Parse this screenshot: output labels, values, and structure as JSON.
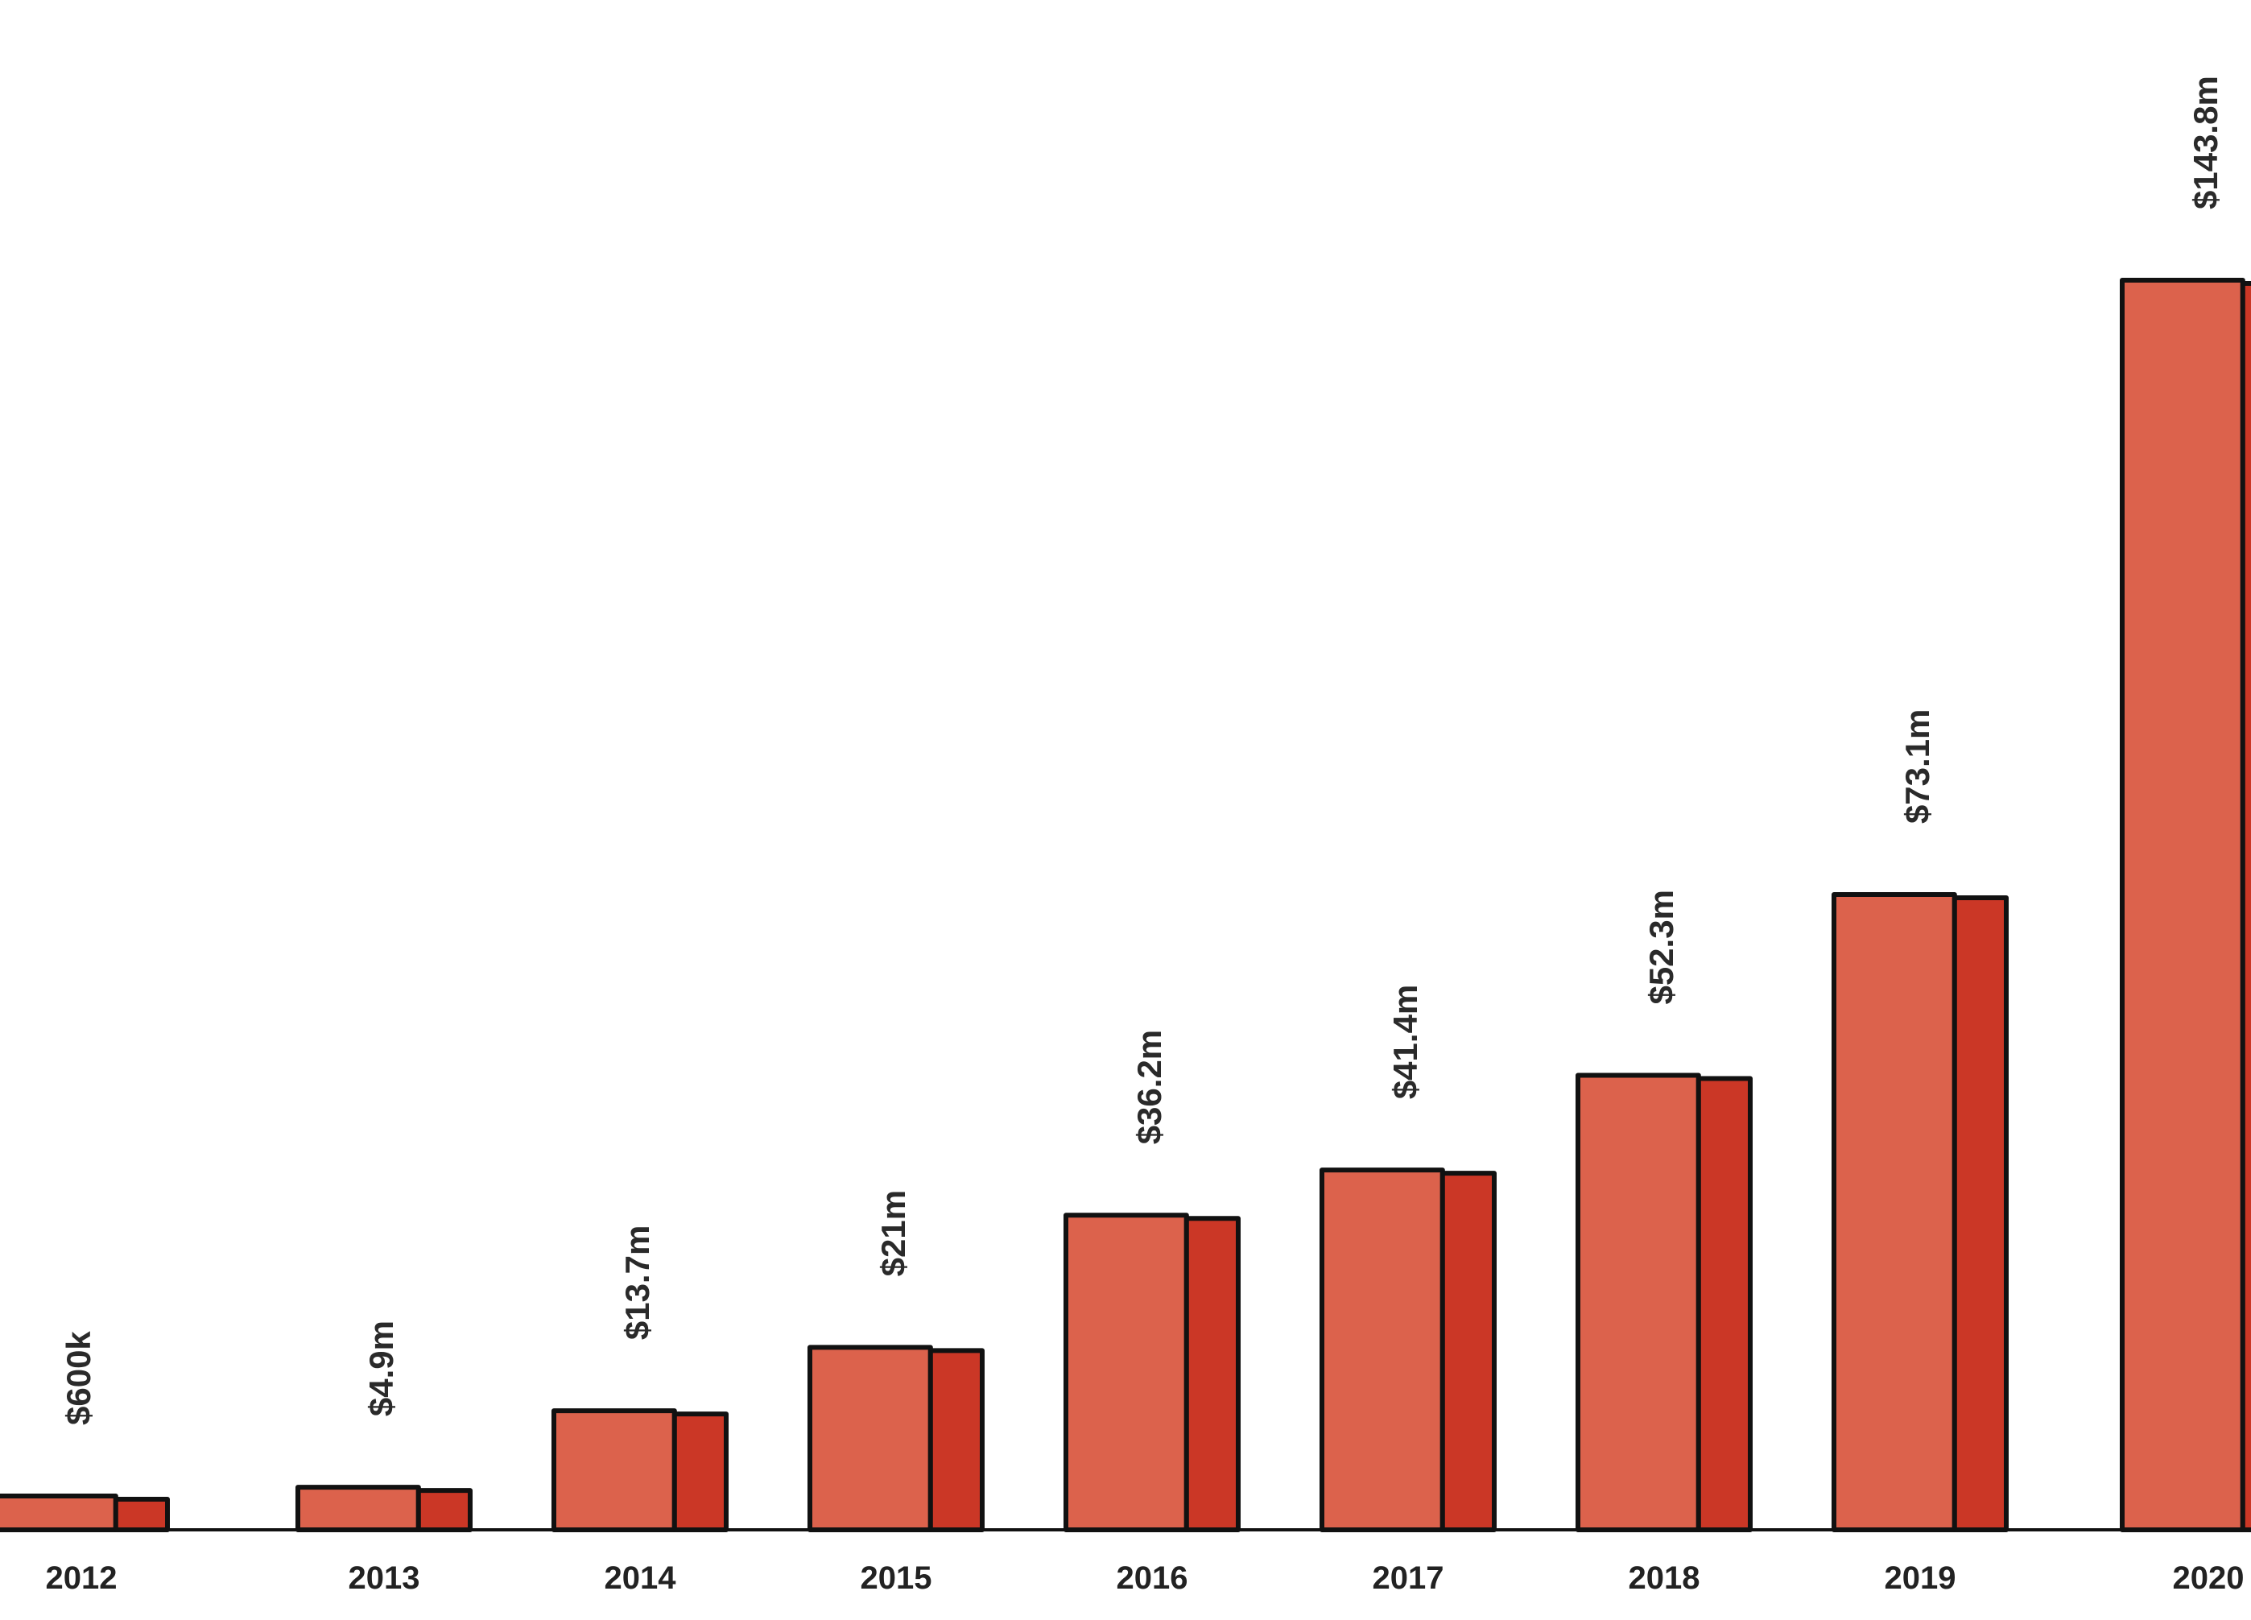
{
  "chart_data": {
    "type": "bar",
    "title": "",
    "xlabel": "",
    "ylabel": "",
    "categories": [
      "2012",
      "2013",
      "2014",
      "2015",
      "2016",
      "2017",
      "2018",
      "2019",
      "2020"
    ],
    "values": [
      0.6,
      4.9,
      13.7,
      21,
      36.2,
      41.4,
      52.3,
      73.1,
      143.8
    ],
    "value_unit": "millions of US dollars",
    "data_labels": [
      "$600k",
      "$4.9m",
      "$13.7m",
      "$21m",
      "$36.2m",
      "$41.4m",
      "$52.3m",
      "$73.1m",
      "$143.8m"
    ],
    "data_label_orientation": "vertical",
    "ylim": [
      0,
      143.8
    ],
    "grid": false,
    "legend": "none",
    "y_axis_shown": false,
    "colors": {
      "bar_front": "#dc624c",
      "bar_side": "#cb3726",
      "outline": "#111111",
      "text": "#222222",
      "background": "#ffffff"
    }
  }
}
